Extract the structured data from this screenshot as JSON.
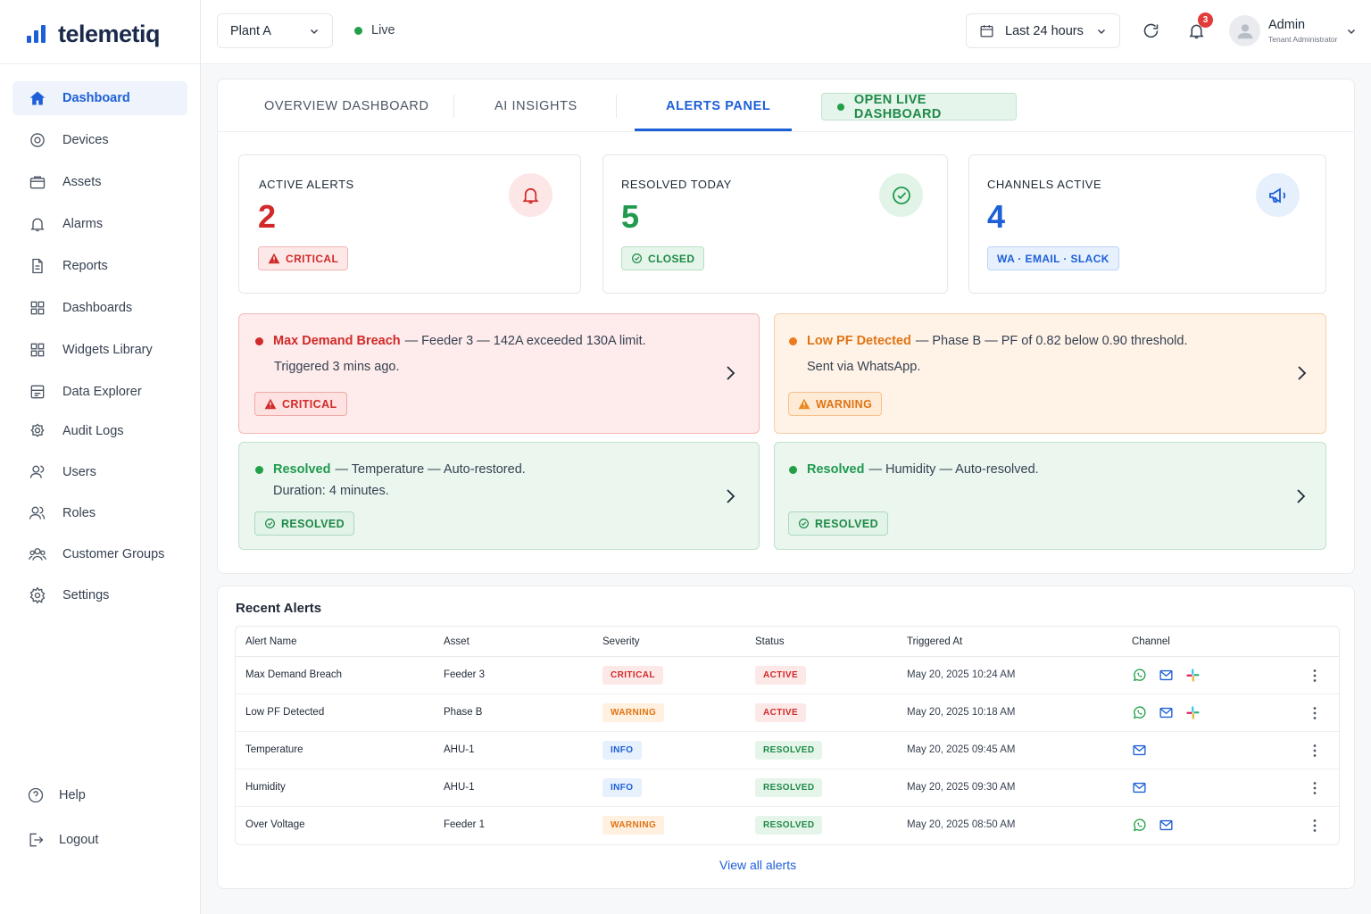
{
  "brand": {
    "name": "telemetiq",
    "accent": "#1d5fd8"
  },
  "sidebar": {
    "items": [
      {
        "label": "Dashboard",
        "icon": "home-icon",
        "active": true
      },
      {
        "label": "Devices",
        "icon": "device-icon"
      },
      {
        "label": "Assets",
        "icon": "briefcase-icon"
      },
      {
        "label": "Alarms",
        "icon": "bell-icon"
      },
      {
        "label": "Reports",
        "icon": "document-icon"
      },
      {
        "label": "Dashboards",
        "icon": "grid-icon"
      },
      {
        "label": "Widgets Library",
        "icon": "grid-icon"
      },
      {
        "label": "Data Explorer",
        "icon": "table-icon"
      },
      {
        "label": "Audit Logs",
        "icon": "audit-icon"
      },
      {
        "label": "Users",
        "icon": "user-icon"
      },
      {
        "label": "Roles",
        "icon": "users-icon"
      },
      {
        "label": "Customer Groups",
        "icon": "group-icon"
      },
      {
        "label": "Settings",
        "icon": "gear-icon"
      }
    ],
    "bottom": [
      {
        "label": "Help",
        "icon": "help-icon"
      },
      {
        "label": "Logout",
        "icon": "logout-icon"
      }
    ]
  },
  "topbar": {
    "plant": "Plant A",
    "live": "Live",
    "range": "Last 24 hours",
    "notifications": "3",
    "user": {
      "name": "Admin",
      "role": "Tenant Administrator"
    }
  },
  "tabs": {
    "overview": "OVERVIEW DASHBOARD",
    "ai": "AI INSIGHTS",
    "alerts": "ALERTS PANEL",
    "live_button": "OPEN LIVE DASHBOARD"
  },
  "stats": {
    "active": {
      "label": "ACTIVE ALERTS",
      "value": "2",
      "pill": "CRITICAL",
      "color": "#d12a2a"
    },
    "resolved": {
      "label": "RESOLVED TODAY",
      "value": "5",
      "pill": "CLOSED",
      "color": "#1f9a4e"
    },
    "channels": {
      "label": "CHANNELS ACTIVE",
      "value": "4",
      "pill": "WA · EMAIL · SLACK",
      "color": "#1d5fd8"
    }
  },
  "alerts": [
    {
      "title": "Max Demand Breach",
      "detail": "— Feeder 3 — 142A exceeded 130A limit.",
      "sub": "Triggered 3 mins ago.",
      "tag": "CRITICAL"
    },
    {
      "title": "Low PF Detected",
      "detail": "— Phase B — PF of 0.82 below 0.90 threshold.",
      "sub": "Sent via WhatsApp.",
      "tag": "WARNING"
    },
    {
      "title": "Resolved",
      "detail": "— Temperature — Auto-restored.",
      "sub": "Duration: 4 minutes.",
      "tag": "RESOLVED"
    },
    {
      "title": "Resolved",
      "detail": "— Humidity — Auto-resolved.",
      "sub": "",
      "tag": "RESOLVED"
    }
  ],
  "recent": {
    "title": "Recent Alerts",
    "columns": [
      "Alert Name",
      "Asset",
      "Severity",
      "Status",
      "Triggered At",
      "Channel"
    ],
    "rows": [
      {
        "name": "Max Demand Breach",
        "asset": "Feeder 3",
        "severity": "CRITICAL",
        "status": "ACTIVE",
        "time": "May 20, 2025 10:24 AM",
        "channels": [
          "whatsapp-icon",
          "email-icon",
          "slack-icon"
        ]
      },
      {
        "name": "Low PF Detected",
        "asset": "Phase B",
        "severity": "WARNING",
        "status": "ACTIVE",
        "time": "May 20, 2025 10:18 AM",
        "channels": [
          "whatsapp-icon",
          "email-icon",
          "slack-icon"
        ]
      },
      {
        "name": "Temperature",
        "asset": "AHU-1",
        "severity": "INFO",
        "status": "RESOLVED",
        "time": "May 20, 2025 09:45 AM",
        "channels": [
          "email-icon"
        ]
      },
      {
        "name": "Humidity",
        "asset": "AHU-1",
        "severity": "INFO",
        "status": "RESOLVED",
        "time": "May 20, 2025 09:30 AM",
        "channels": [
          "email-icon"
        ]
      },
      {
        "name": "Over Voltage",
        "asset": "Feeder 1",
        "severity": "WARNING",
        "status": "RESOLVED",
        "time": "May 20, 2025 08:50 AM",
        "channels": [
          "whatsapp-icon",
          "email-icon"
        ]
      }
    ],
    "view_all": "View all alerts"
  }
}
